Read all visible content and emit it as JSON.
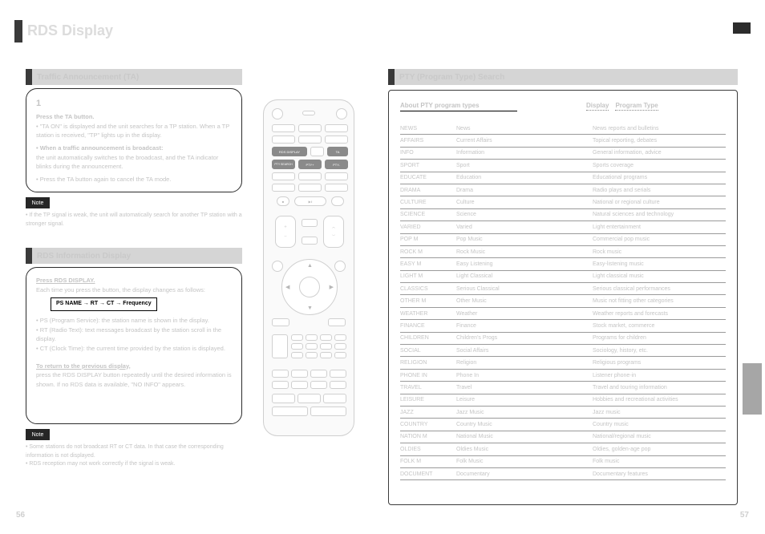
{
  "header": {
    "title": "RDS Display"
  },
  "sectionA": {
    "tab_label": "Traffic Announcement (TA)",
    "step1_num": "1",
    "step1_bold": "Press the TA button.",
    "step1_text": "• \"TA ON\" is displayed and the unit searches for a TP station. When a TP station is received, \"TP\" lights up in the display.",
    "step2_intro": "• When a traffic announcement is broadcast:",
    "step2_line": "the unit automatically switches to the broadcast, and the TA indicator blinks during the announcement.",
    "step3": "• Press the TA button again to cancel the TA mode.",
    "note_label": "Note",
    "note_text": "• If the TP signal is weak, the unit will automatically search for another TP station with a stronger signal."
  },
  "sectionB": {
    "tab_label": "RDS Information Display",
    "intro_underline": "Press RDS DISPLAY.",
    "intro_text": "Each time you press the button, the display changes as follows:",
    "seq": "PS NAME → RT → CT → Frequency",
    "bullets_ps": "• PS (Program Service): the station name is shown in the display.",
    "bullets_rt": "• RT (Radio Text): text messages broadcast by the station scroll in the display.",
    "bullets_ct": "• CT (Clock Time): the current time provided by the station is displayed.",
    "post_underline": "To return to the previous display,",
    "post_text": "press the RDS DISPLAY button repeatedly until the desired information is shown. If no RDS data is available, \"NO INFO\" appears.",
    "note_label": "Note",
    "note_text": "• Some stations do not broadcast RT or CT data. In that case the corresponding information is not displayed.\n• RDS reception may not work correctly if the signal is weak."
  },
  "rightSection": {
    "tab_label": "PTY (Program Type) Search",
    "box_title": "About PTY program types",
    "col_display": "Display",
    "col_type": "Program Type",
    "rows": [
      [
        "NEWS",
        "News",
        "News reports and bulletins"
      ],
      [
        "AFFAIRS",
        "Current Affairs",
        "Topical reporting, debates"
      ],
      [
        "INFO",
        "Information",
        "General information, advice"
      ],
      [
        "SPORT",
        "Sport",
        "Sports coverage"
      ],
      [
        "EDUCATE",
        "Education",
        "Educational programs"
      ],
      [
        "DRAMA",
        "Drama",
        "Radio plays and serials"
      ],
      [
        "CULTURE",
        "Culture",
        "National or regional culture"
      ],
      [
        "SCIENCE",
        "Science",
        "Natural sciences and technology"
      ],
      [
        "VARIED",
        "Varied",
        "Light entertainment"
      ],
      [
        "POP M",
        "Pop Music",
        "Commercial pop music"
      ],
      [
        "ROCK M",
        "Rock Music",
        "Rock music"
      ],
      [
        "EASY M",
        "Easy Listening",
        "Easy-listening music"
      ],
      [
        "LIGHT M",
        "Light Classical",
        "Light classical music"
      ],
      [
        "CLASSICS",
        "Serious Classical",
        "Serious classical performances"
      ],
      [
        "OTHER M",
        "Other Music",
        "Music not fitting other categories"
      ],
      [
        "WEATHER",
        "Weather",
        "Weather reports and forecasts"
      ],
      [
        "FINANCE",
        "Finance",
        "Stock market, commerce"
      ],
      [
        "CHILDREN",
        "Children's Progs",
        "Programs for children"
      ],
      [
        "SOCIAL",
        "Social Affairs",
        "Sociology, history, etc."
      ],
      [
        "RELIGION",
        "Religion",
        "Religious programs"
      ],
      [
        "PHONE IN",
        "Phone In",
        "Listener phone-in"
      ],
      [
        "TRAVEL",
        "Travel",
        "Travel and touring information"
      ],
      [
        "LEISURE",
        "Leisure",
        "Hobbies and recreational activities"
      ],
      [
        "JAZZ",
        "Jazz Music",
        "Jazz music"
      ],
      [
        "COUNTRY",
        "Country Music",
        "Country music"
      ],
      [
        "NATION M",
        "National Music",
        "National/regional music"
      ],
      [
        "OLDIES",
        "Oldies Music",
        "Oldies, golden-age pop"
      ],
      [
        "FOLK M",
        "Folk Music",
        "Folk music"
      ],
      [
        "DOCUMENT",
        "Documentary",
        "Documentary features"
      ]
    ]
  },
  "remote": {
    "highlight_row1": [
      "RDS DISPLAY",
      "TA"
    ],
    "highlight_row2": [
      "PTY SEARCH",
      "PTY+",
      "PTY-"
    ],
    "generic_btn": "—"
  },
  "page_left": "56",
  "page_right": "57",
  "colors": {
    "accent_dark": "#3a3a3a",
    "tab_bg": "#d5d5d5",
    "faint_text": "#c4c4c4",
    "box_border": "#2b2b2b",
    "right_border": "#3b3b3b",
    "side_thumb": "#a6a6a6",
    "remote_border": "#cfcfcf",
    "remote_dark_btn": "#8a8a8a"
  }
}
